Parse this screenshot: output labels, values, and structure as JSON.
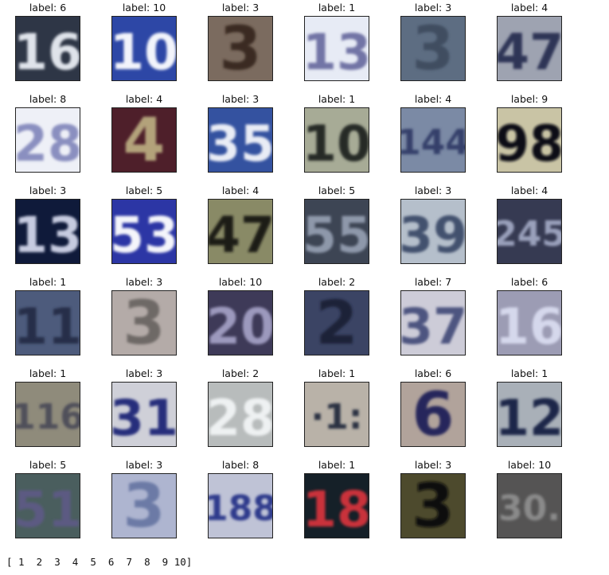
{
  "samples": [
    {
      "label": "label: 6",
      "digits": "16",
      "bg": "#2e3646",
      "fg": "#dfe3ea"
    },
    {
      "label": "label: 10",
      "digits": "10",
      "bg": "#2d47a6",
      "fg": "#f2f4fb"
    },
    {
      "label": "label: 3",
      "digits": "3",
      "bg": "#7b6b5f",
      "fg": "#3b2a22"
    },
    {
      "label": "label: 1",
      "digits": "13",
      "bg": "#e7ebf5",
      "fg": "#7275a6"
    },
    {
      "label": "label: 3",
      "digits": "3",
      "bg": "#5d6d82",
      "fg": "#3f4e61"
    },
    {
      "label": "label: 4",
      "digits": "47",
      "bg": "#9ea3b1",
      "fg": "#2e3557"
    },
    {
      "label": "label: 8",
      "digits": "28",
      "bg": "#eef0f7",
      "fg": "#8a8fc0"
    },
    {
      "label": "label: 4",
      "digits": "4",
      "bg": "#4e1f2a",
      "fg": "#b3a27a"
    },
    {
      "label": "label: 3",
      "digits": "35",
      "bg": "#3452a0",
      "fg": "#e9ecf5"
    },
    {
      "label": "label: 1",
      "digits": "10",
      "bg": "#a7ab96",
      "fg": "#252b27"
    },
    {
      "label": "label: 4",
      "digits": "144",
      "bg": "#7b8aa5",
      "fg": "#34406b"
    },
    {
      "label": "label: 9",
      "digits": "98",
      "bg": "#c9c4a5",
      "fg": "#0e0f18"
    },
    {
      "label": "label: 3",
      "digits": "13",
      "bg": "#0f1a3a",
      "fg": "#c6cbe0"
    },
    {
      "label": "label: 5",
      "digits": "53",
      "bg": "#2c36a5",
      "fg": "#f4f5fb"
    },
    {
      "label": "label: 4",
      "digits": "47",
      "bg": "#898a66",
      "fg": "#1d1a12"
    },
    {
      "label": "label: 5",
      "digits": "55",
      "bg": "#3d4554",
      "fg": "#8e98aa"
    },
    {
      "label": "label: 3",
      "digits": "39",
      "bg": "#b5bfcb",
      "fg": "#43516e"
    },
    {
      "label": "label: 4",
      "digits": "245",
      "bg": "#363a52",
      "fg": "#9aa0bb"
    },
    {
      "label": "label: 1",
      "digits": "11",
      "bg": "#4d5b7c",
      "fg": "#262f48"
    },
    {
      "label": "label: 3",
      "digits": "3",
      "bg": "#b4aba8",
      "fg": "#6e6966"
    },
    {
      "label": "label: 10",
      "digits": "20",
      "bg": "#3e3a58",
      "fg": "#9c99bd"
    },
    {
      "label": "label: 2",
      "digits": "2",
      "bg": "#3b4464",
      "fg": "#1b2238"
    },
    {
      "label": "label: 7",
      "digits": "37",
      "bg": "#cdccd8",
      "fg": "#4e5580"
    },
    {
      "label": "label: 6",
      "digits": "16",
      "bg": "#9c9cb4",
      "fg": "#d5d8ec"
    },
    {
      "label": "label: 1",
      "digits": "116",
      "bg": "#8f8b7b",
      "fg": "#4f4f5a"
    },
    {
      "label": "label: 3",
      "digits": "31",
      "bg": "#cfd0d8",
      "fg": "#262e7c"
    },
    {
      "label": "label: 2",
      "digits": "28",
      "bg": "#b8bcbc",
      "fg": "#eef1f2"
    },
    {
      "label": "label: 1",
      "digits": "·1:",
      "bg": "#b9b2a8",
      "fg": "#2a3042"
    },
    {
      "label": "label: 6",
      "digits": "6",
      "bg": "#b1a39b",
      "fg": "#25275c"
    },
    {
      "label": "label: 1",
      "digits": "12",
      "bg": "#a9b0b8",
      "fg": "#1e2548"
    },
    {
      "label": "label: 5",
      "digits": "51",
      "bg": "#4a5e5e",
      "fg": "#5c5a82"
    },
    {
      "label": "label: 3",
      "digits": "3",
      "bg": "#aeb5d0",
      "fg": "#6c7aa6"
    },
    {
      "label": "label: 8",
      "digits": "188",
      "bg": "#bfc3d6",
      "fg": "#2e3a8c"
    },
    {
      "label": "label: 1",
      "digits": "18",
      "bg": "#152028",
      "fg": "#c9303a"
    },
    {
      "label": "label: 3",
      "digits": "3",
      "bg": "#4d4a2d",
      "fg": "#0d0d08"
    },
    {
      "label": "label: 10",
      "digits": "30.",
      "bg": "#555454",
      "fg": "#8a8a8a"
    }
  ],
  "class_list": "[ 1  2  3  4  5  6  7  8  9 10]"
}
